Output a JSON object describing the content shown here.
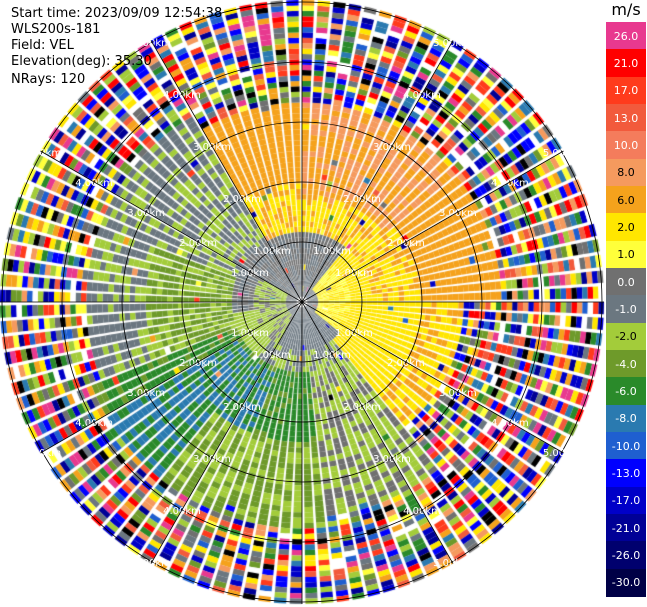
{
  "info": {
    "start_time": "Start time: 2023/09/09 12:54:38",
    "site": "WLS200s-181",
    "field": "Field: VEL",
    "elevation": "Elevation(deg): 35.30",
    "nrays": "NRays: 120"
  },
  "colorbar": {
    "unit": "m/s",
    "levels": [
      {
        "label": "26.0",
        "color": "#e8398f"
      },
      {
        "label": "21.0",
        "color": "#ff0000"
      },
      {
        "label": "17.0",
        "color": "#ff3b1c"
      },
      {
        "label": "13.0",
        "color": "#f25a3c"
      },
      {
        "label": "10.0",
        "color": "#f47c5c"
      },
      {
        "label": "8.0",
        "color": "#f59a5e"
      },
      {
        "label": "6.0",
        "color": "#f5a21c"
      },
      {
        "label": "2.0",
        "color": "#ffe600"
      },
      {
        "label": "1.0",
        "color": "#ffff3a"
      },
      {
        "label": "0.0",
        "color": "#707070"
      },
      {
        "label": "-1.0",
        "color": "#6b7780"
      },
      {
        "label": "-2.0",
        "color": "#a3cc3a"
      },
      {
        "label": "-4.0",
        "color": "#6e9a2a"
      },
      {
        "label": "-6.0",
        "color": "#2a8a2a"
      },
      {
        "label": "-8.0",
        "color": "#2a7ab0"
      },
      {
        "label": "-10.0",
        "color": "#1f5fd0"
      },
      {
        "label": "-13.0",
        "color": "#0000ff"
      },
      {
        "label": "-17.0",
        "color": "#0000c8"
      },
      {
        "label": "-21.0",
        "color": "#000096"
      },
      {
        "label": "-26.0",
        "color": "#00006e"
      },
      {
        "label": "-30.0",
        "color": "#000046"
      }
    ]
  },
  "range_rings": [
    {
      "label": "1.00km"
    },
    {
      "label": "2.00km"
    },
    {
      "label": "3.00km"
    },
    {
      "label": "4.00km"
    },
    {
      "label": "5.00km"
    }
  ],
  "chart_data": {
    "type": "heatmap",
    "title": "",
    "field": "VEL",
    "units": "m/s",
    "nrays": 120,
    "elevation_deg": 35.3,
    "range_rings_km": [
      1,
      2,
      3,
      4,
      5
    ],
    "scale": {
      "min": -30.0,
      "max": 26.0
    },
    "sectors": [
      {
        "azimuth_from_deg": 330,
        "azimuth_to_deg": 90,
        "range_to_km": 3.4,
        "dominant_value_ms": 5
      },
      {
        "azimuth_from_deg": 90,
        "azimuth_to_deg": 140,
        "range_to_km": 2.8,
        "dominant_value_ms": 1.5
      },
      {
        "azimuth_from_deg": 140,
        "azimuth_to_deg": 250,
        "range_to_km": 3.8,
        "dominant_value_ms": -3
      },
      {
        "azimuth_from_deg": 250,
        "azimuth_to_deg": 330,
        "range_to_km": 3.6,
        "dominant_value_ms": -1.5
      }
    ],
    "grid": true
  }
}
